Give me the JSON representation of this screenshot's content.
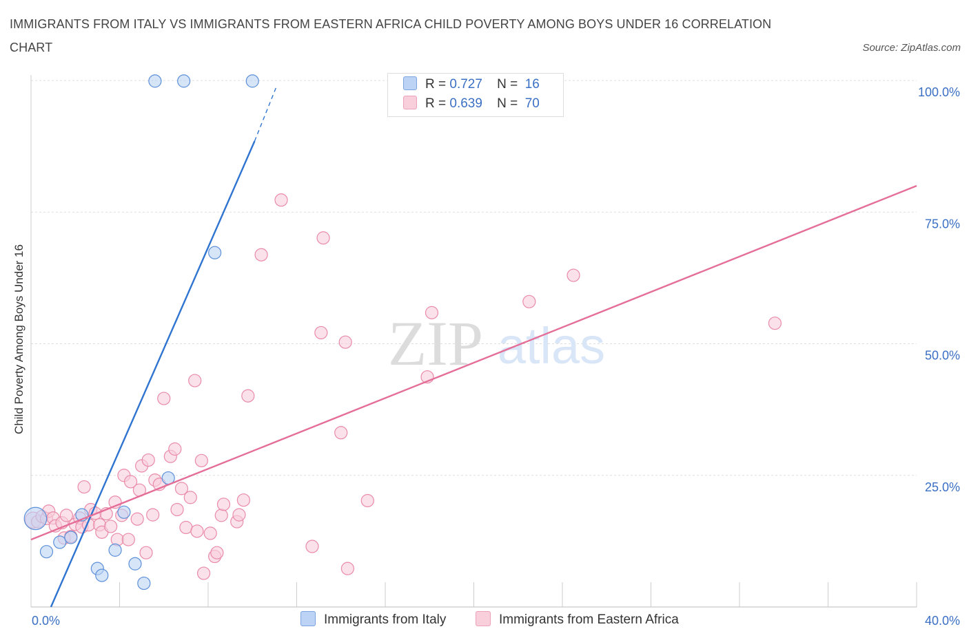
{
  "title": "IMMIGRANTS FROM ITALY VS IMMIGRANTS FROM EASTERN AFRICA CHILD POVERTY AMONG BOYS UNDER 16 CORRELATION CHART",
  "source": "Source: ZipAtlas.com",
  "watermark": {
    "zip": "ZIP",
    "atlas": "atlas"
  },
  "legend": {
    "italy": {
      "r_label": "R =",
      "r_value": "0.727",
      "n_label": "N =",
      "n_value": "16"
    },
    "eafrica": {
      "r_label": "R =",
      "r_value": "0.639",
      "n_label": "N =",
      "n_value": "70"
    }
  },
  "colors": {
    "italy_fill": "#bcd3f5",
    "italy_stroke": "#5b8fd8",
    "italy_line": "#2f74d0",
    "eafrica_fill": "#f9cfdc",
    "eafrica_stroke": "#e98aa8",
    "eafrica_line": "#e46e98",
    "grid": "#dddddd",
    "tick_label": "#3a6fc4"
  },
  "chart_data": {
    "type": "scatter",
    "title": "IMMIGRANTS FROM ITALY VS IMMIGRANTS FROM EASTERN AFRICA CHILD POVERTY AMONG BOYS UNDER 16 CORRELATION CHART",
    "xlabel": "",
    "ylabel": "Child Poverty Among Boys Under 16",
    "xlim": [
      0,
      40
    ],
    "ylim": [
      0,
      100
    ],
    "x_tick_labels": [
      {
        "value": 0,
        "label": "0.0%"
      },
      {
        "value": 40,
        "label": "40.0%"
      }
    ],
    "y_tick_labels": [
      {
        "value": 25,
        "label": "25.0%"
      },
      {
        "value": 50,
        "label": "50.0%"
      },
      {
        "value": 75,
        "label": "75.0%"
      },
      {
        "value": 100,
        "label": "100.0%"
      }
    ],
    "series": [
      {
        "name": "Immigrants from Italy",
        "key": "italy",
        "r": 0.727,
        "n": 16,
        "points": [
          [
            0.2,
            16.8,
            1.8
          ],
          [
            0.7,
            10.5,
            1
          ],
          [
            1.3,
            12.3,
            1
          ],
          [
            1.8,
            13.2,
            1
          ],
          [
            2.3,
            17.5,
            1
          ],
          [
            3.0,
            7.3,
            1
          ],
          [
            3.2,
            6.0,
            1
          ],
          [
            3.8,
            10.8,
            1
          ],
          [
            4.2,
            18.0,
            1
          ],
          [
            4.7,
            8.2,
            1
          ],
          [
            5.1,
            4.5,
            1
          ],
          [
            5.6,
            99.9,
            1
          ],
          [
            6.2,
            24.5,
            1
          ],
          [
            6.9,
            99.9,
            1
          ],
          [
            8.3,
            67.3,
            1
          ],
          [
            10.0,
            99.9,
            1
          ]
        ],
        "trend": {
          "x0": 0.9,
          "y0": 0,
          "x1": 10.1,
          "y1": 88.5,
          "dash_x1": 11.1,
          "dash_y1": 99.0
        }
      },
      {
        "name": "Immigrants from Eastern Africa",
        "key": "eafrica",
        "r": 0.639,
        "n": 70,
        "points": [
          [
            0.1,
            16.5,
            1.3
          ],
          [
            0.3,
            16.2,
            1
          ],
          [
            0.5,
            17.2,
            1
          ],
          [
            0.7,
            16.8,
            1
          ],
          [
            0.8,
            18.2,
            1
          ],
          [
            1.0,
            16.9,
            1
          ],
          [
            1.1,
            15.4,
            1
          ],
          [
            1.4,
            16.0,
            1
          ],
          [
            1.5,
            13.1,
            1
          ],
          [
            1.6,
            17.4,
            1
          ],
          [
            1.8,
            13.4,
            1
          ],
          [
            2.0,
            15.7,
            1
          ],
          [
            2.2,
            16.9,
            1
          ],
          [
            2.3,
            15.2,
            1
          ],
          [
            2.4,
            22.8,
            1
          ],
          [
            2.6,
            15.6,
            1
          ],
          [
            2.7,
            18.5,
            1
          ],
          [
            2.9,
            17.8,
            1
          ],
          [
            3.1,
            15.6,
            1
          ],
          [
            3.2,
            14.2,
            1
          ],
          [
            3.4,
            17.7,
            1
          ],
          [
            3.6,
            15.3,
            1
          ],
          [
            3.8,
            19.9,
            1
          ],
          [
            3.9,
            12.8,
            1
          ],
          [
            4.1,
            17.4,
            1
          ],
          [
            4.2,
            25.0,
            1
          ],
          [
            4.4,
            12.8,
            1
          ],
          [
            4.5,
            23.8,
            1
          ],
          [
            4.8,
            16.7,
            1
          ],
          [
            4.9,
            22.2,
            1
          ],
          [
            5.0,
            26.8,
            1
          ],
          [
            5.2,
            10.3,
            1
          ],
          [
            5.3,
            27.9,
            1
          ],
          [
            5.5,
            17.5,
            1
          ],
          [
            5.6,
            24.1,
            1
          ],
          [
            5.8,
            23.3,
            1
          ],
          [
            6.0,
            39.6,
            1
          ],
          [
            6.3,
            28.6,
            1
          ],
          [
            6.5,
            30.0,
            1
          ],
          [
            6.6,
            18.5,
            1
          ],
          [
            6.8,
            22.5,
            1
          ],
          [
            7.0,
            15.1,
            1
          ],
          [
            7.2,
            20.8,
            1
          ],
          [
            7.4,
            43.0,
            1
          ],
          [
            7.5,
            14.4,
            1
          ],
          [
            7.7,
            27.8,
            1
          ],
          [
            7.8,
            6.4,
            1
          ],
          [
            8.1,
            14.0,
            1
          ],
          [
            8.3,
            9.6,
            1
          ],
          [
            8.4,
            10.3,
            1
          ],
          [
            8.6,
            17.4,
            1
          ],
          [
            8.7,
            19.5,
            1
          ],
          [
            9.3,
            16.2,
            1
          ],
          [
            9.4,
            17.5,
            1
          ],
          [
            9.6,
            20.3,
            1
          ],
          [
            9.8,
            40.1,
            1
          ],
          [
            10.4,
            66.9,
            1
          ],
          [
            11.3,
            77.3,
            1
          ],
          [
            12.7,
            11.5,
            1
          ],
          [
            13.1,
            52.1,
            1
          ],
          [
            13.2,
            70.1,
            1
          ],
          [
            14.0,
            33.1,
            1
          ],
          [
            14.2,
            50.3,
            1
          ],
          [
            14.3,
            7.3,
            1
          ],
          [
            15.2,
            20.2,
            1
          ],
          [
            17.9,
            43.7,
            1
          ],
          [
            18.1,
            55.9,
            1
          ],
          [
            22.5,
            58.0,
            1
          ],
          [
            24.5,
            63.0,
            1
          ],
          [
            33.6,
            53.9,
            1
          ]
        ],
        "trend": {
          "x0": 0,
          "y0": 12.8,
          "x1": 40,
          "y1": 80.0
        }
      }
    ]
  }
}
